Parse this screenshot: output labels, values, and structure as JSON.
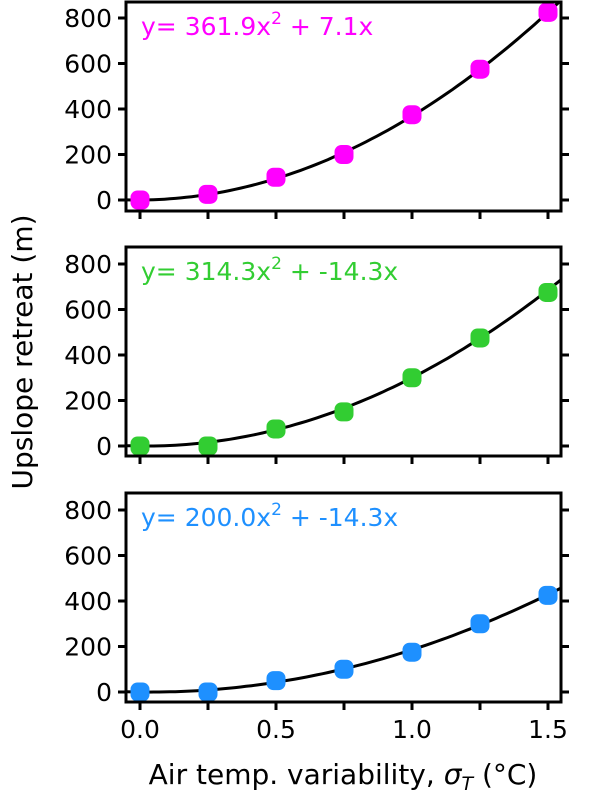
{
  "chart_data": [
    {
      "type": "scatter",
      "panel": "top",
      "title": "",
      "annotation": "y= 361.9x^2 + 7.1x",
      "annotation_parts": {
        "prefix": "y= 361.9x",
        "sup": "2",
        "suffix": " + 7.1x"
      },
      "color": "#ff00ff",
      "fit": {
        "a": 361.9,
        "b": 7.1
      },
      "x": [
        0.0,
        0.25,
        0.5,
        0.75,
        1.0,
        1.25,
        1.5
      ],
      "y": [
        0,
        25,
        100,
        200,
        375,
        575,
        825
      ],
      "xlim": [
        -0.05,
        1.55
      ],
      "ylim": [
        -50,
        850
      ],
      "yticks": [
        0,
        200,
        400,
        600,
        800
      ]
    },
    {
      "type": "scatter",
      "panel": "middle",
      "title": "",
      "annotation": "y= 314.3x^2 + -14.3x",
      "annotation_parts": {
        "prefix": "y= 314.3x",
        "sup": "2",
        "suffix": " + -14.3x"
      },
      "color": "#32cd32",
      "fit": {
        "a": 314.3,
        "b": -14.3
      },
      "x": [
        0.0,
        0.25,
        0.5,
        0.75,
        1.0,
        1.25,
        1.5
      ],
      "y": [
        0,
        0,
        75,
        150,
        300,
        475,
        675
      ],
      "xlim": [
        -0.05,
        1.55
      ],
      "ylim": [
        -50,
        850
      ],
      "yticks": [
        0,
        200,
        400,
        600,
        800
      ]
    },
    {
      "type": "scatter",
      "panel": "bottom",
      "title": "",
      "annotation": "y= 200.0x^2 + -14.3x",
      "annotation_parts": {
        "prefix": "y= 200.0x",
        "sup": "2",
        "suffix": " + -14.3x"
      },
      "color": "#1e90ff",
      "fit": {
        "a": 200.0,
        "b": -14.3
      },
      "x": [
        0.0,
        0.25,
        0.5,
        0.75,
        1.0,
        1.25,
        1.5
      ],
      "y": [
        0,
        0,
        50,
        100,
        175,
        300,
        425
      ],
      "xlim": [
        -0.05,
        1.55
      ],
      "ylim": [
        -50,
        850
      ],
      "yticks": [
        0,
        200,
        400,
        600,
        800
      ],
      "xticks": [
        0.0,
        0.5,
        1.0,
        1.5
      ]
    }
  ],
  "labels": {
    "ylabel": "Upslope retreat (m)",
    "xlabel_prefix": "Air temp. variability, ",
    "xlabel_symbol": "σ",
    "xlabel_subscript": "T",
    "xlabel_suffix": " (°C)"
  },
  "ticks": {
    "y": [
      "0",
      "200",
      "400",
      "600",
      "800"
    ],
    "x": [
      "0.0",
      "0.5",
      "1.0",
      "1.5"
    ]
  }
}
